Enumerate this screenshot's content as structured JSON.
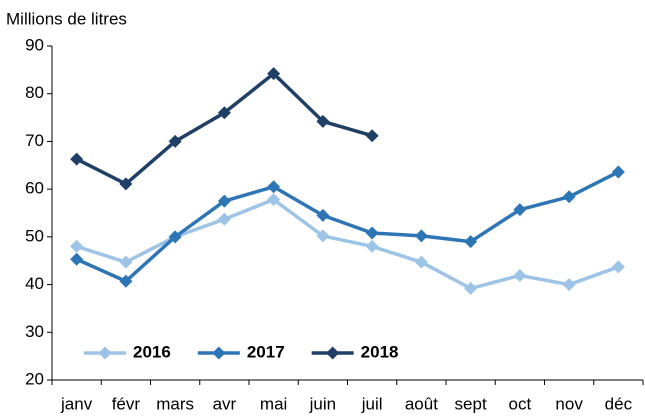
{
  "chart_data": {
    "type": "line",
    "y_axis_label": "Millions de litres",
    "categories": [
      "janv",
      "févr",
      "mars",
      "avr",
      "mai",
      "juin",
      "juil",
      "août",
      "sept",
      "oct",
      "nov",
      "déc"
    ],
    "series": [
      {
        "name": "2016",
        "color": "#9dc3e6",
        "values": [
          48,
          44.7,
          50,
          53.7,
          57.8,
          50.2,
          48,
          44.7,
          39.2,
          41.9,
          40,
          43.7
        ]
      },
      {
        "name": "2017",
        "color": "#2e75b6",
        "values": [
          45.3,
          40.7,
          50,
          57.5,
          60.5,
          54.5,
          50.8,
          50.2,
          49,
          55.7,
          58.4,
          63.6
        ]
      },
      {
        "name": "2018",
        "color": "#1f3f66",
        "values": [
          66.3,
          61.1,
          70,
          76,
          84.2,
          74.2,
          71.2,
          null,
          null,
          null,
          null,
          null
        ]
      }
    ],
    "ylim": [
      20,
      90
    ],
    "yticks": [
      20,
      30,
      40,
      50,
      60,
      70,
      80,
      90
    ],
    "grid": false,
    "legend": "bottom-left"
  }
}
